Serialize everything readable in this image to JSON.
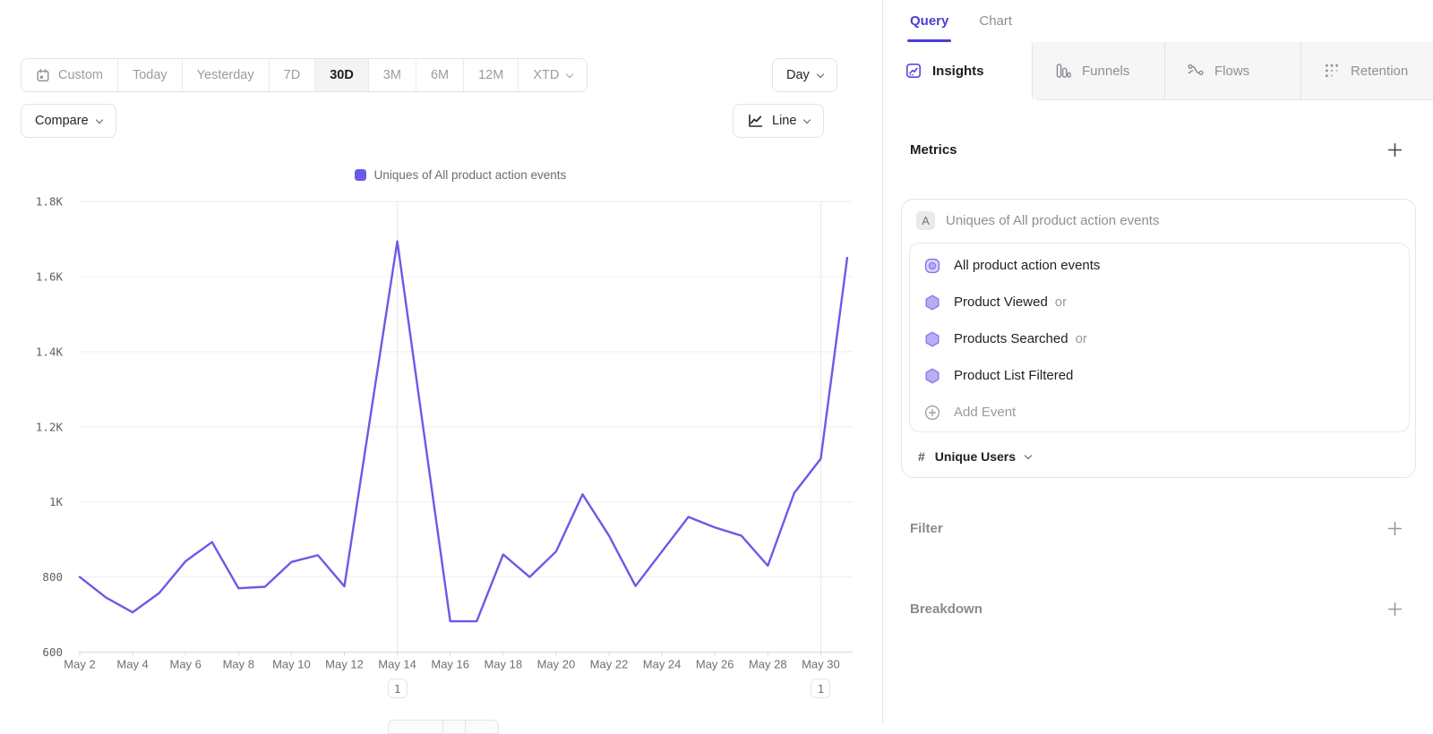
{
  "toolbar": {
    "date_ranges": [
      "Custom",
      "Today",
      "Yesterday",
      "7D",
      "30D",
      "3M",
      "6M",
      "12M",
      "XTD"
    ],
    "active_range": "30D",
    "granularity": "Day",
    "compare_label": "Compare",
    "chart_type": "Line"
  },
  "legend": {
    "label": "Uniques of All product action events",
    "color": "#6a5ae8"
  },
  "chart_data": {
    "type": "line",
    "title": "Uniques of All product action events",
    "x": [
      "May 2",
      "May 3",
      "May 4",
      "May 5",
      "May 6",
      "May 7",
      "May 8",
      "May 9",
      "May 10",
      "May 11",
      "May 12",
      "May 13",
      "May 14",
      "May 15",
      "May 16",
      "May 17",
      "May 18",
      "May 19",
      "May 20",
      "May 21",
      "May 22",
      "May 23",
      "May 24",
      "May 25",
      "May 26",
      "May 27",
      "May 28",
      "May 29",
      "May 30",
      "May 31"
    ],
    "series": [
      {
        "name": "Uniques of All product action events",
        "color": "#6a5ae8",
        "values": [
          800,
          745,
          706,
          757,
          842,
          893,
          770,
          774,
          840,
          858,
          775,
          1235,
          1694,
          1187,
          682,
          682,
          860,
          800,
          868,
          1020,
          910,
          776,
          868,
          960,
          932,
          910,
          830,
          1024,
          1115,
          1650
        ]
      }
    ],
    "ylim": [
      600,
      1800
    ],
    "y_ticks": [
      {
        "v": 1800,
        "label": "1.8K"
      },
      {
        "v": 1600,
        "label": "1.6K"
      },
      {
        "v": 1400,
        "label": "1.4K"
      },
      {
        "v": 1200,
        "label": "1.2K"
      },
      {
        "v": 1000,
        "label": "1K"
      },
      {
        "v": 800,
        "label": "800"
      },
      {
        "v": 600,
        "label": "600"
      }
    ],
    "x_tick_step": 2,
    "grid": true,
    "legend_position": "top",
    "annotations": [
      {
        "at": "May 14",
        "label": "1"
      },
      {
        "at": "May 30",
        "label": "1"
      }
    ]
  },
  "query_panel": {
    "view_tabs": [
      {
        "label": "Query"
      },
      {
        "label": "Chart"
      }
    ],
    "report_tabs": [
      {
        "label": "Insights"
      },
      {
        "label": "Funnels"
      },
      {
        "label": "Flows"
      },
      {
        "label": "Retention"
      }
    ],
    "active_report_tab": "Insights",
    "metrics": {
      "heading": "Metrics",
      "metric_badge": "A",
      "metric_label": "Uniques of All product action events",
      "events": [
        {
          "name": "All product action events",
          "suffix": ""
        },
        {
          "name": "Product Viewed",
          "suffix": "or"
        },
        {
          "name": "Products Searched",
          "suffix": "or"
        },
        {
          "name": "Product List Filtered",
          "suffix": ""
        }
      ],
      "add_event_label": "Add Event",
      "measurement": {
        "symbol": "#",
        "label": "Unique Users"
      }
    },
    "sections": [
      {
        "label": "Filter"
      },
      {
        "label": "Breakdown"
      }
    ],
    "accent_color": "#4b3ed2"
  }
}
